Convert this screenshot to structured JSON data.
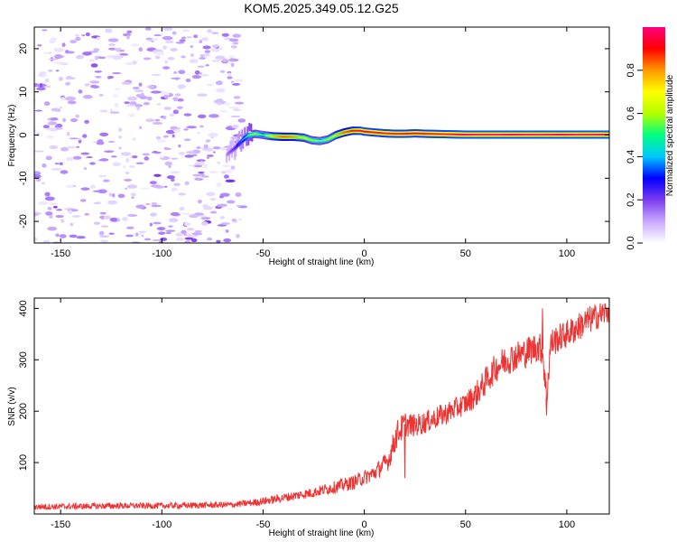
{
  "title": "KOM5.2025.349.05.12.G25",
  "colors": {
    "snr_line": "#ee3333",
    "spec_trace": "#cc0000",
    "axis": "#000000",
    "background": "#ffffff"
  },
  "chart_data": [
    {
      "type": "heatmap",
      "id": "spectrogram",
      "xlabel": "Height of straight line (km)",
      "ylabel": "Frequency (Hz)",
      "xlim": [
        -163,
        121
      ],
      "ylim": [
        -25,
        25
      ],
      "xticks": [
        -150,
        -100,
        -50,
        0,
        50,
        100
      ],
      "yticks": [
        -20,
        -10,
        0,
        10,
        20
      ],
      "colorbar": {
        "label": "Normalized spectral amplitude",
        "range": [
          0,
          1
        ],
        "ticks": [
          0.0,
          0.2,
          0.4,
          0.6,
          0.8
        ],
        "tick_labels": [
          "0.0",
          "0.2",
          "0.4",
          "0.6",
          "0.8"
        ],
        "colormap": [
          "#ffffff",
          "#c8a8ff",
          "#7c3cf0",
          "#0000ff",
          "#00c8ff",
          "#00ff80",
          "#b4ff00",
          "#ffff00",
          "#ff9900",
          "#ff0000",
          "#ff0080"
        ]
      },
      "noise_region": {
        "x_range": [
          -163,
          -60
        ],
        "y_range": [
          -25,
          25
        ],
        "amplitude_range": [
          0.02,
          0.15
        ]
      },
      "signal_trace": {
        "x": [
          -68,
          -64,
          -60,
          -57,
          -54,
          -50,
          -45,
          -40,
          -35,
          -30,
          -26,
          -22,
          -18,
          -14,
          -10,
          -6,
          -2,
          0,
          5,
          10,
          15,
          20,
          25,
          30,
          40,
          50,
          60,
          70,
          80,
          90,
          100,
          110,
          121
        ],
        "freq": [
          -4.5,
          -3,
          -1,
          0,
          0.3,
          0,
          -0.3,
          -0.4,
          -0.4,
          -0.6,
          -1.2,
          -1.4,
          -1,
          0,
          0.6,
          1,
          1,
          0.8,
          0.6,
          0.4,
          0.3,
          0.3,
          0.4,
          0.3,
          0.2,
          0.1,
          0.1,
          0.1,
          0.1,
          0.1,
          0.1,
          0.1,
          0.1
        ],
        "amplitude": [
          0.15,
          0.25,
          0.4,
          0.55,
          0.6,
          0.5,
          0.75,
          0.85,
          0.8,
          0.7,
          0.6,
          0.55,
          0.6,
          0.75,
          0.85,
          0.9,
          0.95,
          0.95,
          0.95,
          0.95,
          0.95,
          0.95,
          0.95,
          0.95,
          0.97,
          0.98,
          0.98,
          0.98,
          0.98,
          0.98,
          0.98,
          0.98,
          0.98
        ]
      }
    },
    {
      "type": "line",
      "id": "snr",
      "xlabel": "Height of straight line (km)",
      "ylabel": "SNR (v/v)",
      "xlim": [
        -163,
        121
      ],
      "ylim": [
        0,
        420
      ],
      "xticks": [
        -150,
        -100,
        -50,
        0,
        50,
        100
      ],
      "yticks": [
        100,
        200,
        300,
        400
      ],
      "series": [
        {
          "name": "SNR",
          "x": [
            -163,
            -140,
            -120,
            -100,
            -80,
            -65,
            -55,
            -45,
            -35,
            -25,
            -15,
            -5,
            5,
            12,
            16,
            20,
            25,
            30,
            40,
            50,
            55,
            60,
            65,
            70,
            80,
            85,
            88,
            90,
            92,
            95,
            100,
            105,
            110,
            115,
            121
          ],
          "values": [
            14,
            15,
            16,
            16,
            17,
            18,
            22,
            28,
            35,
            42,
            52,
            62,
            80,
            105,
            155,
            175,
            172,
            178,
            195,
            215,
            232,
            258,
            285,
            300,
            315,
            325,
            320,
            225,
            330,
            340,
            350,
            362,
            375,
            385,
            395
          ],
          "noise_amplitude": [
            6,
            6,
            6,
            6,
            6,
            6,
            7,
            8,
            9,
            10,
            12,
            14,
            16,
            20,
            28,
            25,
            22,
            22,
            22,
            22,
            25,
            28,
            28,
            30,
            30,
            30,
            30,
            30,
            30,
            28,
            28,
            28,
            28,
            26,
            26
          ]
        }
      ],
      "annotations": [
        {
          "x": 20,
          "y": 70,
          "note": "spike down"
        },
        {
          "x": 88,
          "y": 400,
          "note": "spike up"
        },
        {
          "x": 90,
          "y": 192,
          "note": "spike down"
        }
      ]
    }
  ]
}
